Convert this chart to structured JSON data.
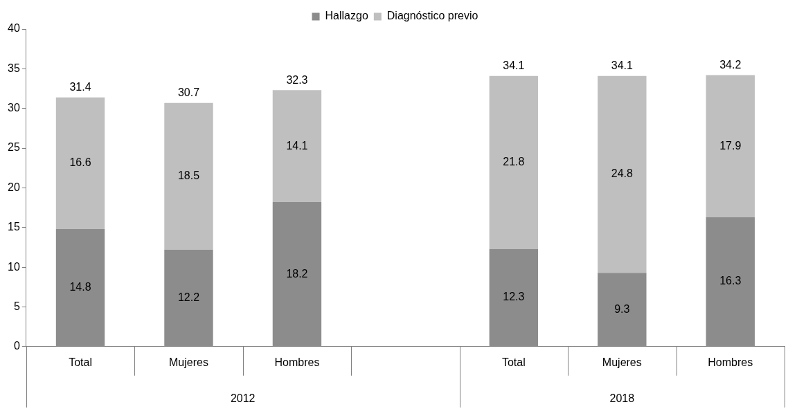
{
  "chart_data": {
    "type": "bar",
    "stacked": true,
    "categories": [
      "Total",
      "Mujeres",
      "Hombres",
      null,
      "Total",
      "Mujeres",
      "Hombres"
    ],
    "series": [
      {
        "name": "Hallazgo",
        "color": "#8c8c8c",
        "values": [
          14.8,
          12.2,
          18.2,
          null,
          12.3,
          9.3,
          16.3
        ]
      },
      {
        "name": "Diagnóstico previo",
        "color": "#bfbfbf",
        "values": [
          16.6,
          18.5,
          14.1,
          null,
          21.8,
          24.8,
          17.9
        ]
      }
    ],
    "totals": [
      "31.4",
      "30.7",
      "32.3",
      null,
      "34.1",
      "34.1",
      "34.2"
    ],
    "data_labels": true,
    "annotations": [
      "2012",
      "2018"
    ],
    "ylim": [
      0,
      40
    ],
    "yticks": [
      0,
      5,
      10,
      15,
      20,
      25,
      30,
      35,
      40
    ],
    "grid": false,
    "legend": "top"
  }
}
